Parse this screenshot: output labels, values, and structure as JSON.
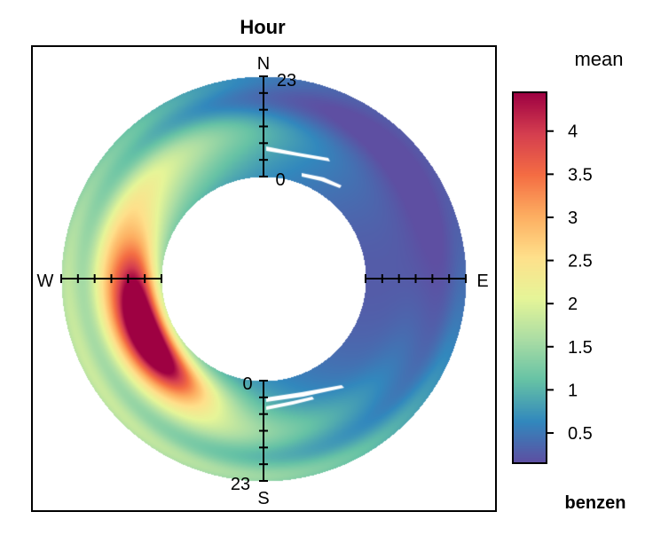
{
  "chart_data": {
    "type": "heatmap",
    "subtype": "polar-annulus",
    "title": "Hour",
    "pollutant": "benzen",
    "statistic": "mean",
    "radial_axis": {
      "label": "Hour",
      "range": [
        0,
        23
      ],
      "inner_tick": "0",
      "outer_tick": "23"
    },
    "directions": [
      "N",
      "E",
      "S",
      "W"
    ],
    "colorbar": {
      "ticks": [
        "0.5",
        "1",
        "1.5",
        "2",
        "2.5",
        "3",
        "3.5",
        "4"
      ],
      "range": [
        0.15,
        4.45
      ],
      "palette": [
        "#5E4FA2",
        "#3288BD",
        "#66C2A5",
        "#ABDDA4",
        "#E6F598",
        "#FEE08B",
        "#FDAE61",
        "#F46D43",
        "#D53E4F",
        "#9E0142"
      ]
    },
    "hotspot": {
      "direction_deg": 245,
      "hour": 6,
      "value": 4.3
    },
    "notes_visible": "high mean benzen concentration toward WSW at early hours"
  }
}
